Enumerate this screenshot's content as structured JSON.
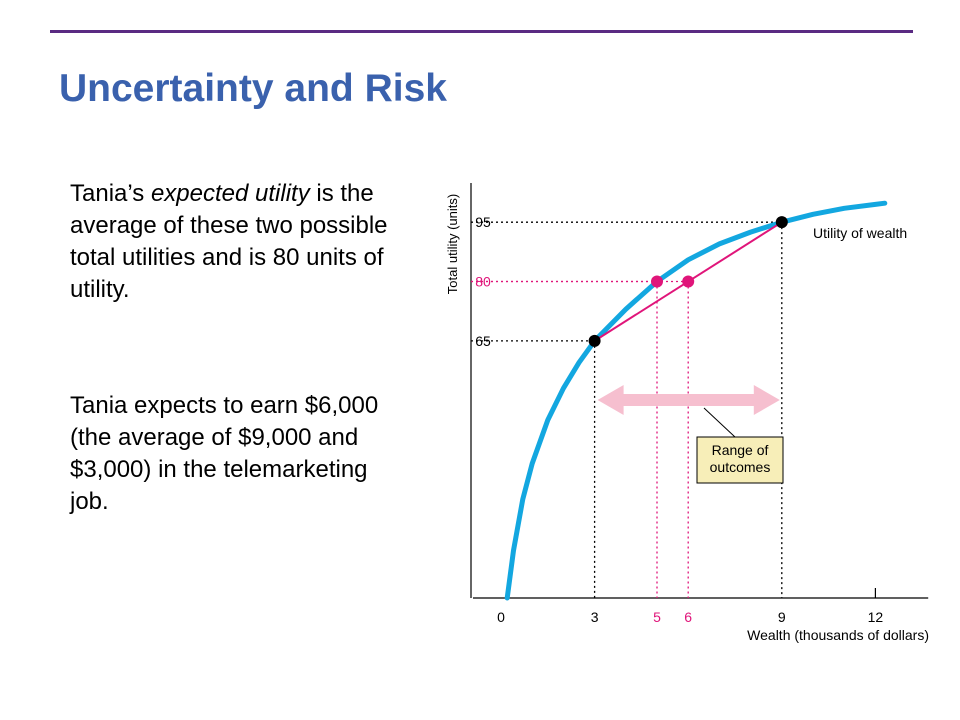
{
  "slide": {
    "title": "Uncertainty and Risk",
    "para1": {
      "before": "Tania’s ",
      "emph": "expected utility",
      "after": " is the average of these two possible total utilities and is 80 units of utility."
    },
    "para2": "Tania expects to earn $6,000 (the average of $9,000 and $3,000) in the telemarketing job."
  },
  "colors": {
    "title": "#3a61ad",
    "rule": "#5a2a82",
    "curve": "#13a7e0",
    "magenta": "#e0157a",
    "arrow": "#f6bfcf",
    "callout_fill": "#f7eeb8"
  },
  "chart_data": {
    "type": "line",
    "xlabel": "Wealth (thousands of dollars)",
    "ylabel": "Total utility (units)",
    "xlim": [
      0,
      13.5
    ],
    "ylim": [
      0,
      100
    ],
    "x_ticks": [
      {
        "value": 0,
        "label": "0",
        "color": "black"
      },
      {
        "value": 3,
        "label": "3",
        "color": "black"
      },
      {
        "value": 5,
        "label": "5",
        "color": "magenta"
      },
      {
        "value": 6,
        "label": "6",
        "color": "magenta"
      },
      {
        "value": 9,
        "label": "9",
        "color": "black"
      },
      {
        "value": 12,
        "label": "12",
        "color": "black"
      }
    ],
    "y_ticks": [
      {
        "value": 65,
        "label": "65",
        "color": "black"
      },
      {
        "value": 80,
        "label": "80",
        "color": "magenta"
      },
      {
        "value": 95,
        "label": "95",
        "color": "black"
      }
    ],
    "curve": {
      "label": "Utility of wealth",
      "points": [
        [
          0.2,
          0
        ],
        [
          0.4,
          12
        ],
        [
          0.7,
          25
        ],
        [
          1.0,
          34
        ],
        [
          1.5,
          45
        ],
        [
          2.0,
          53
        ],
        [
          2.5,
          59.5
        ],
        [
          3,
          65
        ],
        [
          4,
          73
        ],
        [
          5,
          80
        ],
        [
          6,
          85.5
        ],
        [
          7,
          89.5
        ],
        [
          8,
          92.5
        ],
        [
          9,
          95
        ],
        [
          10,
          97
        ],
        [
          11,
          98.5
        ],
        [
          12,
          99.5
        ],
        [
          12.3,
          99.8
        ]
      ]
    },
    "chord": {
      "from": [
        3,
        65
      ],
      "to": [
        9,
        95
      ]
    },
    "points": [
      {
        "x": 3,
        "y": 65,
        "color": "black"
      },
      {
        "x": 9,
        "y": 95,
        "color": "black"
      },
      {
        "x": 5,
        "y": 80,
        "color": "magenta"
      },
      {
        "x": 6,
        "y": 80,
        "color": "magenta"
      }
    ],
    "range_arrow": {
      "from": 3,
      "to": 9
    },
    "annotations": {
      "range": [
        "Range of",
        "outcomes"
      ]
    }
  }
}
